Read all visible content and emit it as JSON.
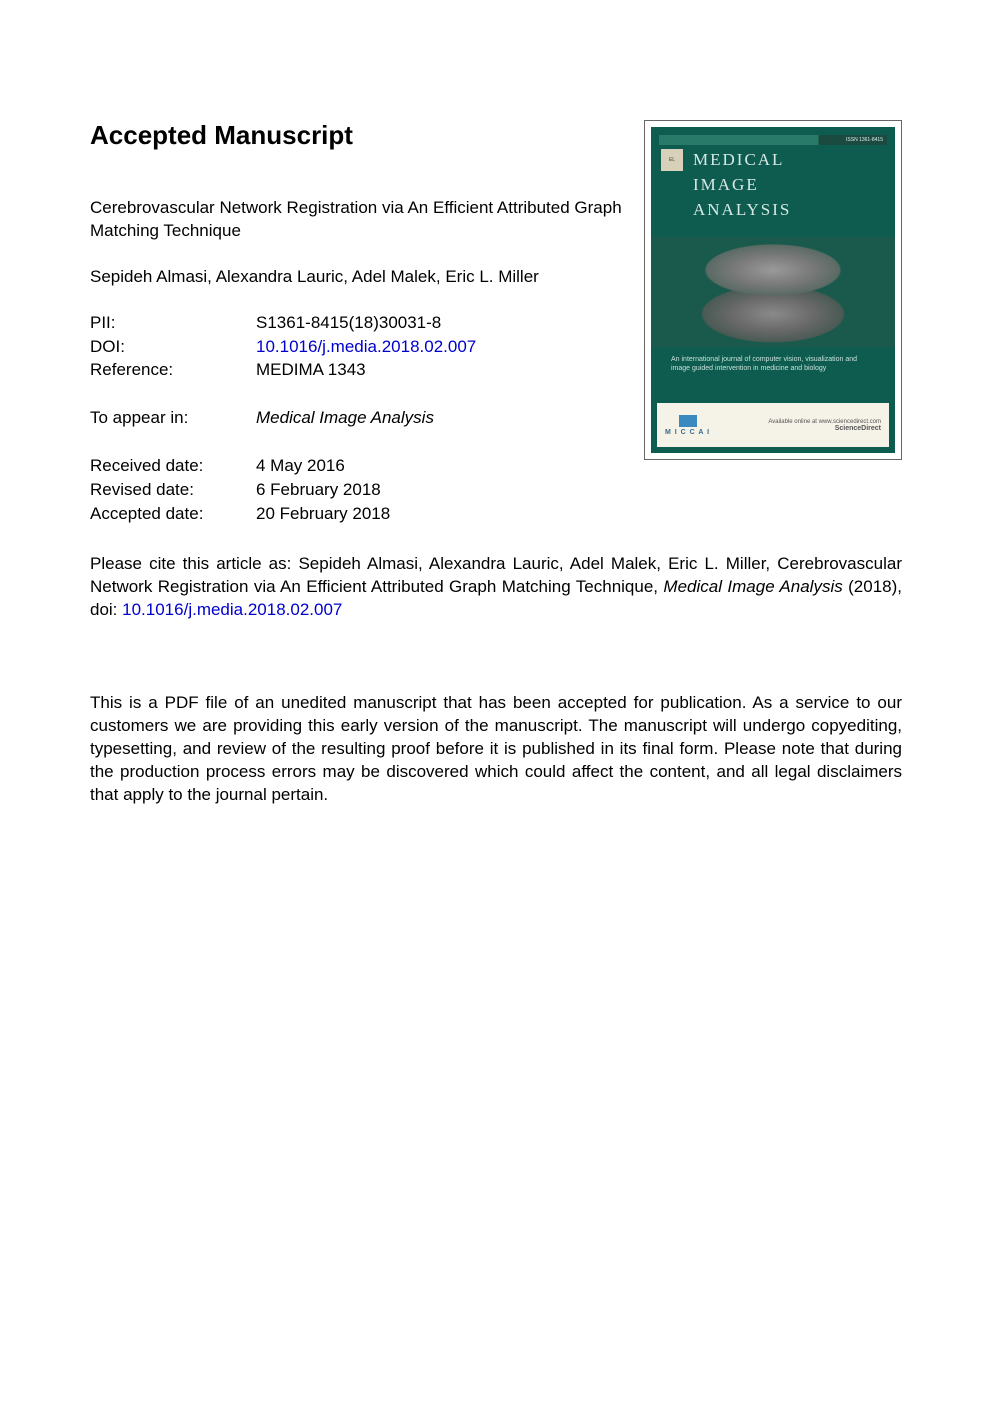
{
  "heading": "Accepted Manuscript",
  "title": "Cerebrovascular Network Registration via An Efficient Attributed Graph Matching Technique",
  "authors": "Sepideh Almasi, Alexandra Lauric, Adel Malek, Eric L. Miller",
  "meta1": [
    {
      "label": "PII:",
      "value": "S1361-8415(18)30031-8",
      "link": false
    },
    {
      "label": "DOI:",
      "value": "10.1016/j.media.2018.02.007",
      "link": true
    },
    {
      "label": "Reference:",
      "value": "MEDIMA 1343",
      "link": false
    }
  ],
  "appear": {
    "label": "To appear in:",
    "value": "Medical Image Analysis"
  },
  "meta2": [
    {
      "label": "Received date:",
      "value": "4 May 2016"
    },
    {
      "label": "Revised date:",
      "value": "6 February 2018"
    },
    {
      "label": "Accepted date:",
      "value": "20 February 2018"
    }
  ],
  "cite": {
    "prefix": "Please cite this article as: Sepideh Almasi, Alexandra Lauric, Adel Malek, Eric L. Miller, Cerebrovascular Network Registration via An Efficient Attributed Graph Matching Technique, ",
    "journal": "Medical Image Analysis",
    "mid": " (2018), doi: ",
    "doi": "10.1016/j.media.2018.02.007"
  },
  "disclaimer": "This is a PDF file of an unedited manuscript that has been accepted for publication. As a service to our customers we are providing this early version of the manuscript. The manuscript will undergo copyediting, typesetting, and review of the resulting proof before it is published in its final form. Please note that during the production process errors may be discovered which could affect the content, and all legal disclaimers that apply to the journal pertain.",
  "cover": {
    "issn": "ISSN 1361-8415",
    "title_lines": [
      "MEDICAL",
      "IMAGE",
      "ANALYSIS"
    ],
    "subtitle": "An international journal of computer vision, visualization and image guided intervention in medicine and biology",
    "miccai": "M I C C A I",
    "sd_line1": "Available online at www.sciencedirect.com",
    "sd_line2": "ScienceDirect",
    "colors": {
      "bg": "#0d5c4f",
      "title_color": "#d8e8e4",
      "footer_bg": "#f5f2e8"
    }
  },
  "colors": {
    "text": "#000000",
    "link": "#0000cc",
    "page_bg": "#ffffff"
  },
  "typography": {
    "heading_fontsize": 26,
    "body_fontsize": 17,
    "font_family": "Arial, Helvetica, sans-serif"
  }
}
